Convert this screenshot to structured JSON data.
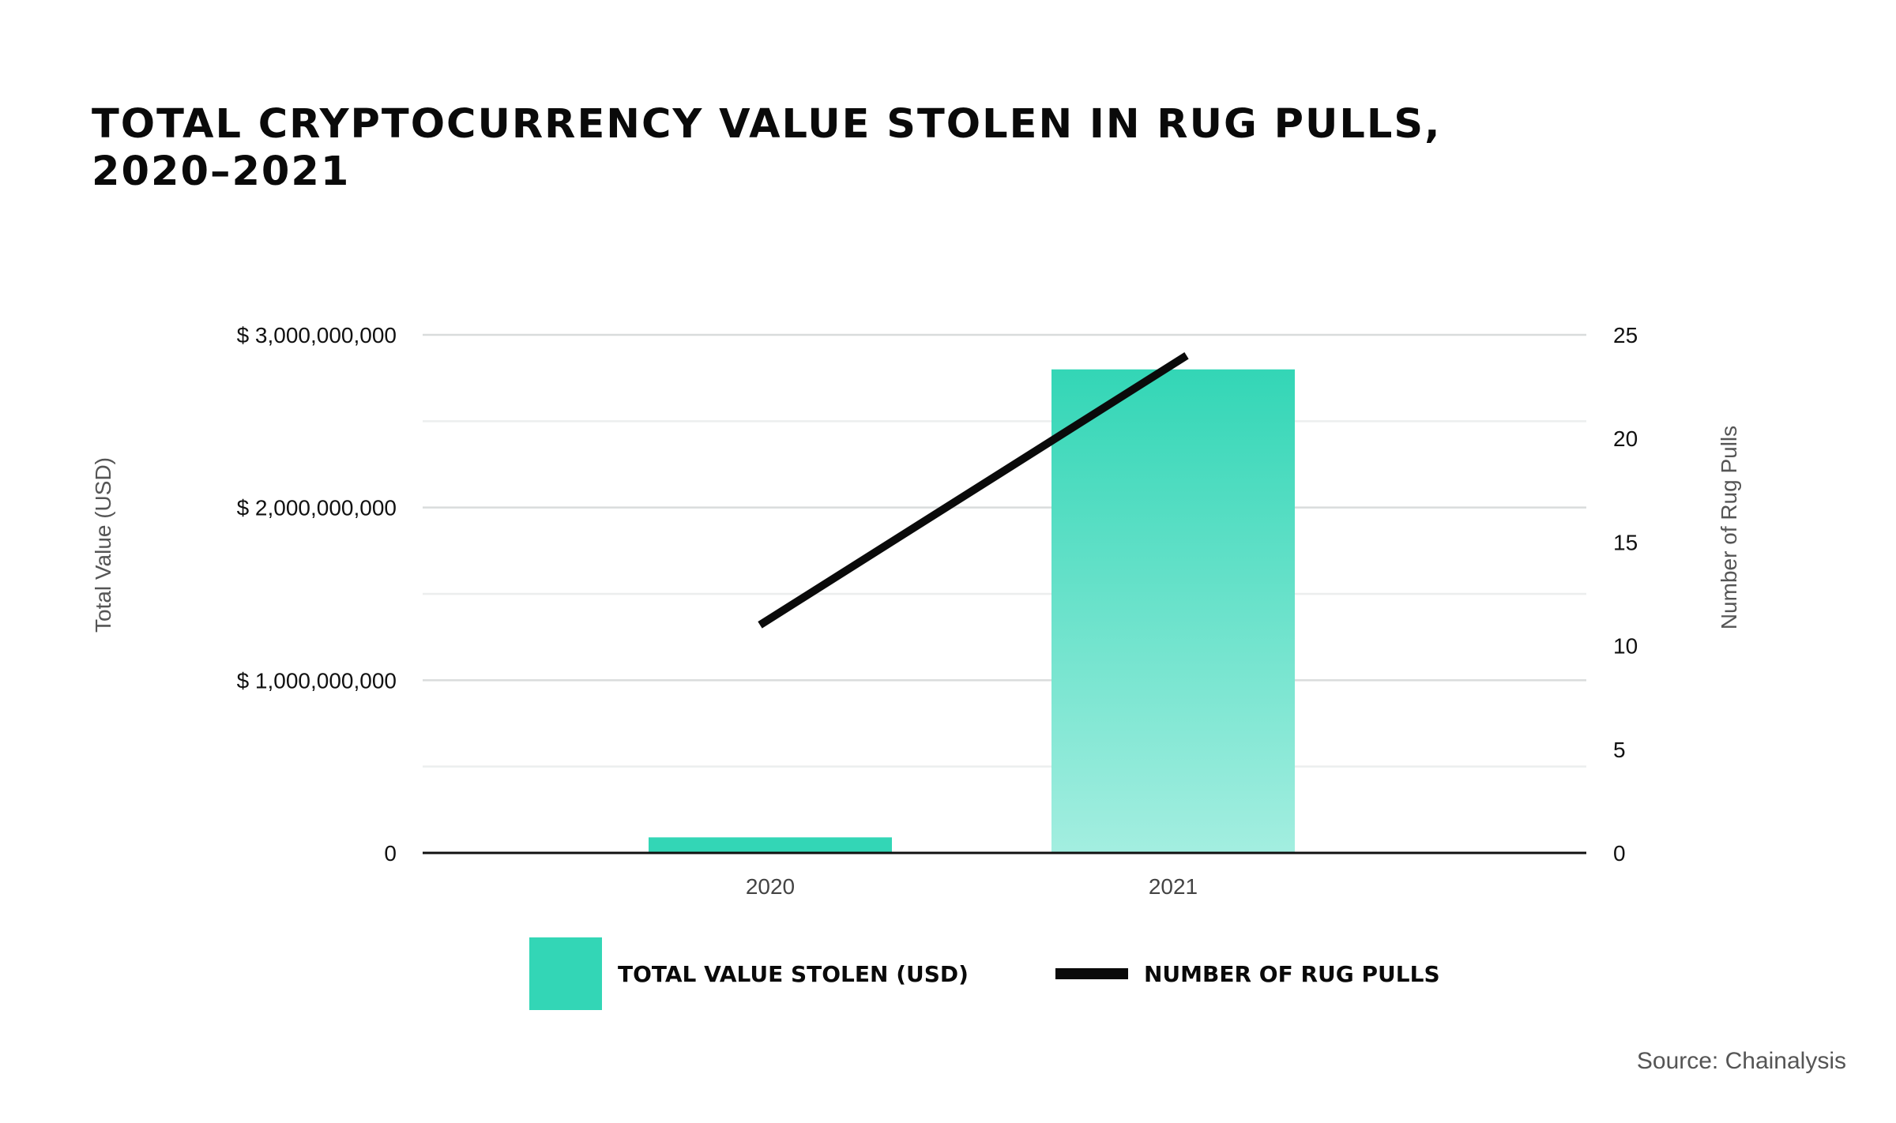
{
  "chart_data": {
    "type": "bar",
    "title": "TOTAL CRYPTOCURRENCY VALUE STOLEN IN RUG PULLS, 2020–2021",
    "categories": [
      "2020",
      "2021"
    ],
    "series": [
      {
        "name": "TOTAL VALUE STOLEN (USD)",
        "type": "bar",
        "axis": "left",
        "color": "#33d6b6",
        "values": [
          90000000,
          2800000000
        ]
      },
      {
        "name": "NUMBER OF RUG PULLS",
        "type": "line",
        "axis": "right",
        "color": "#0a0a0a",
        "values": [
          11,
          24
        ]
      }
    ],
    "y_left": {
      "label": "Total Value (USD)",
      "ylim": [
        0,
        3000000000
      ],
      "ticks": [
        0,
        1000000000,
        2000000000,
        3000000000
      ],
      "tick_labels": [
        "0",
        "$ 1,000,000,000",
        "$ 2,000,000,000",
        "$ 3,000,000,000"
      ]
    },
    "y_right": {
      "label": "Number of Rug Pulls",
      "ylim": [
        0,
        25
      ],
      "ticks": [
        0,
        5,
        10,
        15,
        20,
        25
      ],
      "tick_labels": [
        "0",
        "5",
        "10",
        "15",
        "20",
        "25"
      ]
    },
    "grid": true,
    "legend_position": "bottom",
    "source": "Source: Chainalysis"
  }
}
